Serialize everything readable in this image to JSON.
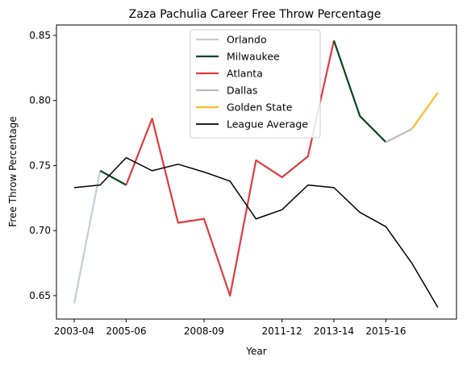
{
  "chart_data": {
    "type": "line",
    "title": "Zaza Pachulia Career Free Throw Percentage",
    "xlabel": "Year",
    "ylabel": "Free Throw Percentage",
    "x": [
      "2003-04",
      "2004-05",
      "2005-06",
      "2006-07",
      "2007-08",
      "2008-09",
      "2009-10",
      "2010-11",
      "2011-12",
      "2012-13",
      "2013-14",
      "2014-15",
      "2015-16",
      "2016-17",
      "2017-18"
    ],
    "xticks": [
      {
        "index": 0,
        "label": "2003-04"
      },
      {
        "index": 2,
        "label": "2005-06"
      },
      {
        "index": 5,
        "label": "2008-09"
      },
      {
        "index": 8,
        "label": "2011-12"
      },
      {
        "index": 10,
        "label": "2013-14"
      },
      {
        "index": 12,
        "label": "2015-16"
      }
    ],
    "ylim": [
      0.632,
      0.858
    ],
    "yticks": [
      {
        "value": 0.65,
        "label": "0.65"
      },
      {
        "value": 0.7,
        "label": "0.70"
      },
      {
        "value": 0.75,
        "label": "0.75"
      },
      {
        "value": 0.8,
        "label": "0.80"
      },
      {
        "value": 0.85,
        "label": "0.85"
      }
    ],
    "grid": false,
    "legend_position": "top-center",
    "series": [
      {
        "name": "Orlando",
        "color": "#c4ced4",
        "points": [
          [
            0,
            0.644
          ],
          [
            1,
            0.746
          ]
        ]
      },
      {
        "name": "Milwaukee",
        "color": "#00471b",
        "points": [
          [
            1,
            0.746
          ],
          [
            2,
            0.735
          ]
        ]
      },
      {
        "name": "Atlanta",
        "color": "#e03a3e",
        "points": [
          [
            2,
            0.735
          ],
          [
            3,
            0.786
          ],
          [
            4,
            0.706
          ],
          [
            5,
            0.709
          ],
          [
            6,
            0.65
          ],
          [
            7,
            0.754
          ],
          [
            8,
            0.741
          ],
          [
            9,
            0.757
          ],
          [
            10,
            0.846
          ]
        ]
      },
      {
        "name": "Milwaukee",
        "color": "#00471b",
        "legend": false,
        "points": [
          [
            10,
            0.846
          ],
          [
            11,
            0.788
          ],
          [
            12,
            0.768
          ]
        ]
      },
      {
        "name": "Dallas",
        "color": "#bbbbbb",
        "points": [
          [
            12,
            0.768
          ],
          [
            13,
            0.778
          ]
        ]
      },
      {
        "name": "Golden State",
        "color": "#fdb927",
        "points": [
          [
            13,
            0.778
          ],
          [
            14,
            0.806
          ]
        ]
      },
      {
        "name": "League Average",
        "color": "#000000",
        "thin": true,
        "points": [
          [
            0,
            0.733
          ],
          [
            1,
            0.735
          ],
          [
            2,
            0.756
          ],
          [
            3,
            0.746
          ],
          [
            4,
            0.751
          ],
          [
            5,
            0.745
          ],
          [
            6,
            0.738
          ],
          [
            7,
            0.709
          ],
          [
            8,
            0.716
          ],
          [
            9,
            0.735
          ],
          [
            10,
            0.733
          ],
          [
            11,
            0.714
          ],
          [
            12,
            0.703
          ],
          [
            13,
            0.675
          ],
          [
            14,
            0.641
          ]
        ]
      }
    ],
    "legend_entries": [
      {
        "name": "Orlando",
        "color": "#c4ced4"
      },
      {
        "name": "Milwaukee",
        "color": "#00471b"
      },
      {
        "name": "Atlanta",
        "color": "#e03a3e"
      },
      {
        "name": "Dallas",
        "color": "#bbbbbb"
      },
      {
        "name": "Golden State",
        "color": "#fdb927"
      },
      {
        "name": "League Average",
        "color": "#000000"
      }
    ]
  }
}
